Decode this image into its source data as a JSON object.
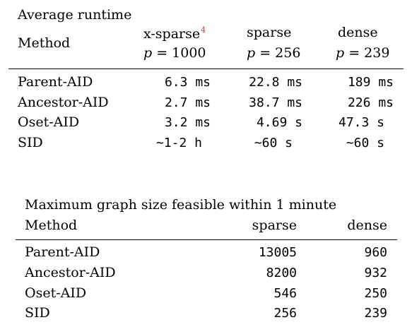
{
  "table1": {
    "caption": "Average runtime",
    "method_header": "Method",
    "columns": [
      {
        "name": "x-sparse",
        "footnote": "4",
        "p_var": "p",
        "p_eq": " = 1000"
      },
      {
        "name": "sparse",
        "footnote": "",
        "p_var": "p",
        "p_eq": " = 256"
      },
      {
        "name": "dense",
        "footnote": "",
        "p_var": "p",
        "p_eq": " = 239"
      }
    ],
    "rows": [
      {
        "method": "Parent-AID",
        "values": [
          "6.3 ms",
          "22.8 ms",
          "189 ms"
        ]
      },
      {
        "method": "Ancestor-AID",
        "values": [
          "2.7 ms",
          "38.7 ms",
          "226 ms"
        ]
      },
      {
        "method": "Oset-AID",
        "values": [
          "3.2 ms",
          "4.69 s",
          "47.3 s"
        ]
      },
      {
        "method": "SID",
        "values": [
          "~1-2 h",
          "~60 s",
          "~60 s"
        ]
      }
    ]
  },
  "table2": {
    "caption": "Maximum graph size feasible within 1 minute",
    "method_header": "Method",
    "columns": [
      "sparse",
      "dense"
    ],
    "rows": [
      {
        "method": "Parent-AID",
        "values": [
          "13005",
          "960"
        ]
      },
      {
        "method": "Ancestor-AID",
        "values": [
          "8200",
          "932"
        ]
      },
      {
        "method": "Oset-AID",
        "values": [
          "546",
          "250"
        ]
      },
      {
        "method": "SID",
        "values": [
          "256",
          "239"
        ]
      }
    ]
  }
}
